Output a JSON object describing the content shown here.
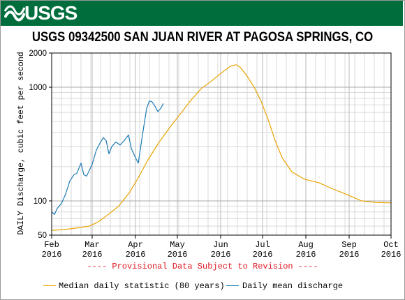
{
  "header": {
    "agency": "USGS",
    "brand_color": "#006e3c"
  },
  "chart_data": {
    "type": "line",
    "title": "USGS 09342500 SAN JUAN RIVER AT PAGOSA SPRINGS, CO",
    "ylabel": "DAILY Discharge, cubic feet per second",
    "xlabel": "",
    "yscale": "log",
    "ylim": [
      50,
      2000
    ],
    "y_major_ticks": [
      50,
      100,
      1000,
      2000
    ],
    "x_ticks": [
      {
        "month": "Feb",
        "year": "2016",
        "date": "2016-02-01"
      },
      {
        "month": "Mar",
        "year": "2016",
        "date": "2016-03-01"
      },
      {
        "month": "Apr",
        "year": "2016",
        "date": "2016-04-01"
      },
      {
        "month": "May",
        "year": "2016",
        "date": "2016-05-01"
      },
      {
        "month": "Jun",
        "year": "2016",
        "date": "2016-06-01"
      },
      {
        "month": "Jul",
        "year": "2016",
        "date": "2016-07-01"
      },
      {
        "month": "Aug",
        "year": "2016",
        "date": "2016-08-01"
      },
      {
        "month": "Sep",
        "year": "2016",
        "date": "2016-09-01"
      },
      {
        "month": "Oct",
        "year": "2016",
        "date": "2016-10-01"
      }
    ],
    "xlim": [
      "2016-02-01",
      "2016-10-01"
    ],
    "grid": true,
    "annotation": "---- Provisional Data Subject to Revision ----",
    "annotation_color": "#e0141e",
    "legend_position": "bottom",
    "series": [
      {
        "name": "Median daily statistic (80 years)",
        "color": "#e8a300",
        "points": [
          [
            "2016-02-01",
            55
          ],
          [
            "2016-02-10",
            56
          ],
          [
            "2016-02-20",
            58
          ],
          [
            "2016-02-28",
            60
          ],
          [
            "2016-03-05",
            65
          ],
          [
            "2016-03-12",
            75
          ],
          [
            "2016-03-20",
            90
          ],
          [
            "2016-03-28",
            120
          ],
          [
            "2016-04-03",
            160
          ],
          [
            "2016-04-10",
            230
          ],
          [
            "2016-04-18",
            330
          ],
          [
            "2016-04-26",
            450
          ],
          [
            "2016-05-03",
            580
          ],
          [
            "2016-05-10",
            750
          ],
          [
            "2016-05-18",
            970
          ],
          [
            "2016-05-26",
            1150
          ],
          [
            "2016-06-02",
            1350
          ],
          [
            "2016-06-08",
            1530
          ],
          [
            "2016-06-12",
            1580
          ],
          [
            "2016-06-15",
            1500
          ],
          [
            "2016-06-20",
            1250
          ],
          [
            "2016-06-25",
            1000
          ],
          [
            "2016-06-30",
            750
          ],
          [
            "2016-07-05",
            520
          ],
          [
            "2016-07-10",
            340
          ],
          [
            "2016-07-15",
            240
          ],
          [
            "2016-07-22",
            180
          ],
          [
            "2016-07-31",
            155
          ],
          [
            "2016-08-10",
            145
          ],
          [
            "2016-08-20",
            128
          ],
          [
            "2016-08-31",
            113
          ],
          [
            "2016-09-10",
            100
          ],
          [
            "2016-09-20",
            97
          ],
          [
            "2016-10-01",
            96
          ]
        ]
      },
      {
        "name": "Daily mean discharge",
        "color": "#1d7ab4",
        "points": [
          [
            "2016-02-01",
            80
          ],
          [
            "2016-02-03",
            76
          ],
          [
            "2016-02-05",
            86
          ],
          [
            "2016-02-08",
            95
          ],
          [
            "2016-02-11",
            115
          ],
          [
            "2016-02-14",
            150
          ],
          [
            "2016-02-17",
            170
          ],
          [
            "2016-02-19",
            175
          ],
          [
            "2016-02-22",
            215
          ],
          [
            "2016-02-24",
            170
          ],
          [
            "2016-02-26",
            165
          ],
          [
            "2016-03-01",
            210
          ],
          [
            "2016-03-04",
            280
          ],
          [
            "2016-03-07",
            330
          ],
          [
            "2016-03-09",
            360
          ],
          [
            "2016-03-11",
            340
          ],
          [
            "2016-03-13",
            260
          ],
          [
            "2016-03-15",
            300
          ],
          [
            "2016-03-18",
            330
          ],
          [
            "2016-03-21",
            310
          ],
          [
            "2016-03-24",
            340
          ],
          [
            "2016-03-27",
            380
          ],
          [
            "2016-03-29",
            290
          ],
          [
            "2016-04-01",
            240
          ],
          [
            "2016-04-03",
            215
          ],
          [
            "2016-04-06",
            380
          ],
          [
            "2016-04-09",
            650
          ],
          [
            "2016-04-11",
            760
          ],
          [
            "2016-04-13",
            740
          ],
          [
            "2016-04-15",
            680
          ],
          [
            "2016-04-17",
            610
          ],
          [
            "2016-04-19",
            650
          ],
          [
            "2016-04-21",
            720
          ]
        ]
      }
    ]
  }
}
